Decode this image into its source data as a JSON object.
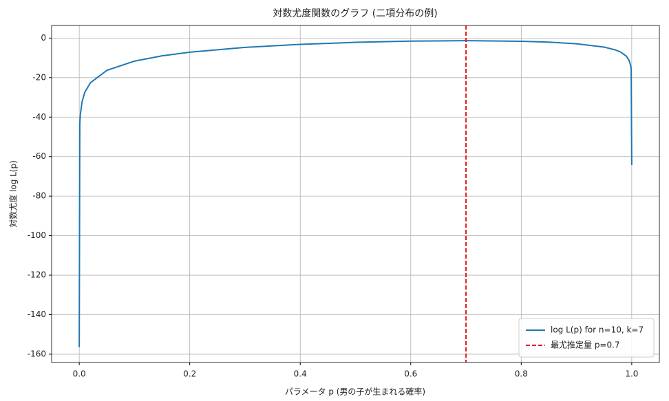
{
  "chart_data": {
    "type": "line",
    "title": "対数尤度関数のグラフ (二項分布の例)",
    "x_label": "パラメータ p (男の子が生まれる確率)",
    "y_label": "対数尤度 log L(p)",
    "x": [
      0,
      0.001,
      0.002,
      0.005,
      0.01,
      0.02,
      0.05,
      0.1,
      0.15,
      0.2,
      0.3,
      0.4,
      0.5,
      0.6,
      0.7,
      0.8,
      0.85,
      0.9,
      0.95,
      0.97,
      0.98,
      0.99,
      0.995,
      0.998,
      0.999,
      1
    ],
    "series": [
      {
        "name": "log L(p) for n=10, k=7",
        "color": "#1f77b4",
        "values": [
          -156.4,
          -43.57,
          -38.72,
          -32.32,
          -27.48,
          -22.66,
          -16.34,
          -11.65,
          -8.98,
          -7.15,
          -4.71,
          -3.16,
          -2.15,
          -1.54,
          -1.32,
          -1.6,
          -2.04,
          -2.86,
          -4.56,
          -5.95,
          -7.09,
          -9.1,
          -11.14,
          -13.87,
          -15.94,
          -64.29
        ]
      }
    ],
    "vlines": [
      {
        "name": "最尤推定量 p=0.7",
        "x": 0.7,
        "color": "#e41a1c",
        "style": "dashed"
      }
    ],
    "xlim": [
      -0.05,
      1.05
    ],
    "ylim": [
      -164.2,
      6.4
    ],
    "xticks": [
      {
        "value": 0,
        "label": "0.0"
      },
      0.2,
      0.4,
      0.6,
      0.8,
      {
        "value": 1,
        "label": "1.0"
      }
    ],
    "yticks": [
      -160,
      -140,
      -120,
      -100,
      -80,
      -60,
      -40,
      -20,
      0
    ],
    "grid": true,
    "legend": "lower right"
  }
}
